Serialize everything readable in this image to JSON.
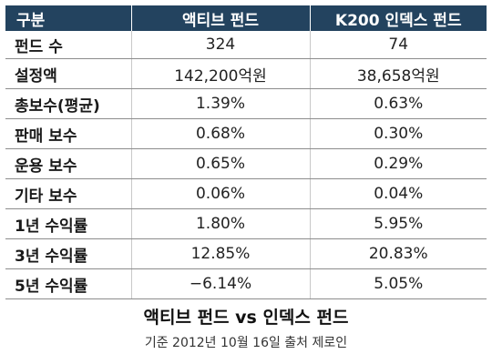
{
  "table": {
    "headers": [
      "구분",
      "액티브 펀드",
      "K200 인덱스 펀드"
    ],
    "rows": [
      [
        "펀드 수",
        "324",
        "74"
      ],
      [
        "설정액",
        "142,200억원",
        "38,658억원"
      ],
      [
        "총보수(평균)",
        "1.39%",
        "0.63%"
      ],
      [
        "판매 보수",
        "0.68%",
        "0.30%"
      ],
      [
        "운용 보수",
        "0.65%",
        "0.29%"
      ],
      [
        "기타 보수",
        "0.06%",
        "0.04%"
      ],
      [
        "1년 수익률",
        "1.80%",
        "5.95%"
      ],
      [
        "3년 수익률",
        "12.85%",
        "20.83%"
      ],
      [
        "5년 수익률",
        "−6.14%",
        "5.05%"
      ]
    ]
  },
  "caption": {
    "title": "액티브 펀드 vs 인덱스 펀드",
    "source": "기준 2012년 10월 16일 출처 제로인"
  },
  "colors": {
    "header_bg": "#23435f",
    "header_text": "#ffffff"
  }
}
